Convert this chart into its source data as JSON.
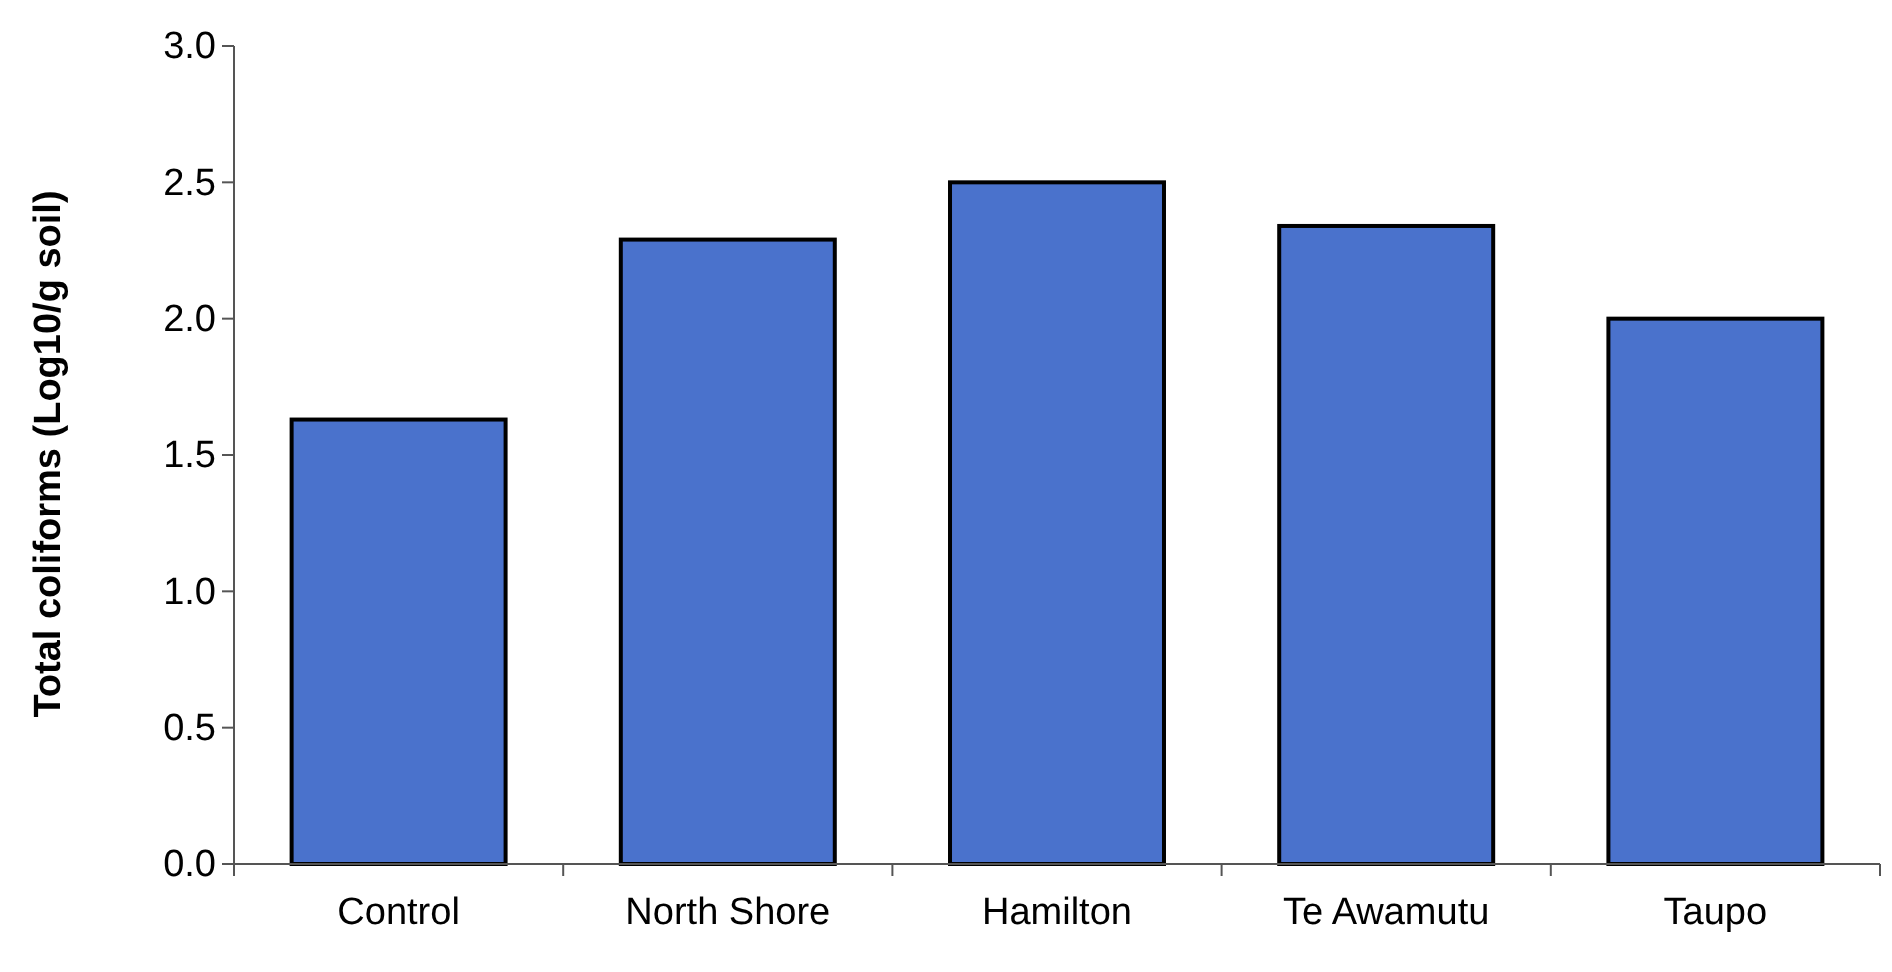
{
  "chart_data": {
    "type": "bar",
    "ylabel": "Total coliforms (Log10/g soil)",
    "categories": [
      "Control",
      "North Shore",
      "Hamilton",
      "Te Awamutu",
      "Taupo"
    ],
    "values": [
      1.63,
      2.29,
      2.5,
      2.34,
      2.0
    ],
    "color": "#4a72cc",
    "ylim": [
      0,
      3
    ],
    "yticks": [
      {
        "value": 0,
        "label": "0.0"
      },
      {
        "value": 0.5,
        "label": "0.5"
      },
      {
        "value": 1,
        "label": "1.0"
      },
      {
        "value": 1.5,
        "label": "1.5"
      },
      {
        "value": 2,
        "label": "2.0"
      },
      {
        "value": 2.5,
        "label": "2.5"
      },
      {
        "value": 3,
        "label": "3.0"
      }
    ],
    "grid": false
  }
}
